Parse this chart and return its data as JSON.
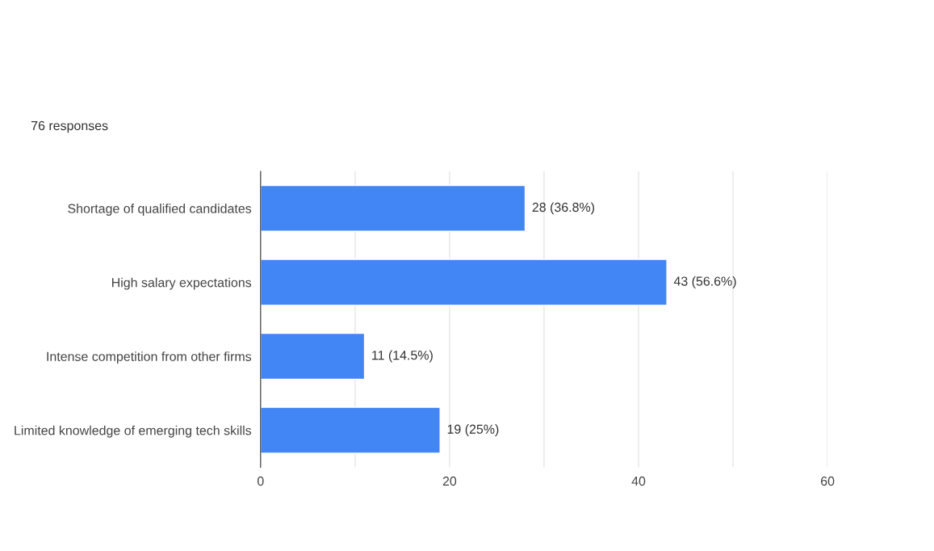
{
  "chart_data": {
    "type": "bar",
    "orientation": "horizontal",
    "subtitle": "76 responses",
    "categories": [
      "Shortage of qualified candidates",
      "High salary expectations",
      "Intense competition from other firms",
      "Limited knowledge of emerging tech skills"
    ],
    "values": [
      28,
      43,
      11,
      19
    ],
    "value_labels": [
      "28 (36.8%)",
      "43 (56.6%)",
      "11 (14.5%)",
      "19 (25%)"
    ],
    "color": "#4285f4",
    "xlim": [
      0,
      60
    ],
    "xticks": [
      0,
      {
        "value": 10,
        "label": null
      },
      20,
      {
        "value": 30,
        "label": null
      },
      40,
      {
        "value": 50,
        "label": null
      },
      60
    ],
    "grid": "x",
    "legend": false
  }
}
